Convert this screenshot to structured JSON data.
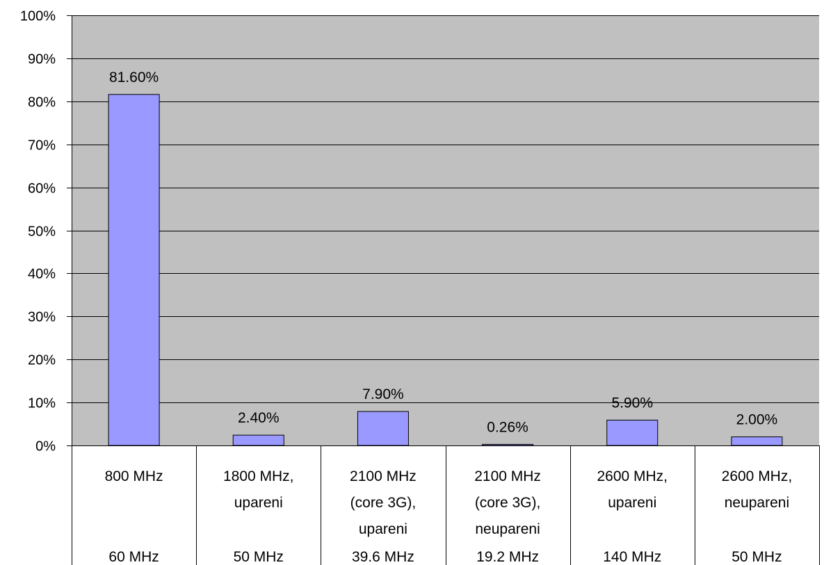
{
  "chart_data": {
    "type": "bar",
    "categories": [
      [
        "800 MHz"
      ],
      [
        "1800 MHz,",
        "upareni"
      ],
      [
        "2100 MHz",
        "(core 3G),",
        "upareni"
      ],
      [
        "2100 MHz",
        "(core 3G),",
        "neupareni"
      ],
      [
        "2600 MHz,",
        "upareni"
      ],
      [
        "2600 MHz,",
        "neupareni"
      ]
    ],
    "bandwidths": [
      "60 MHz",
      "50 MHz",
      "39.6 MHz",
      "19.2 MHz",
      "140 MHz",
      "50 MHz"
    ],
    "values": [
      81.6,
      2.4,
      7.9,
      0.26,
      5.9,
      2.0
    ],
    "data_labels": [
      "81.60%",
      "2.40%",
      "7.90%",
      "0.26%",
      "5.90%",
      "2.00%"
    ],
    "ylim": [
      0,
      100
    ],
    "y_ticks": [
      "0%",
      "10%",
      "20%",
      "30%",
      "40%",
      "50%",
      "60%",
      "70%",
      "80%",
      "90%",
      "100%"
    ],
    "title": "",
    "xlabel": "",
    "ylabel": "",
    "grid": true,
    "legend": "none",
    "colors": {
      "bar": "#9999ff",
      "plot_background": "#c0c0c0",
      "axis": "#000000"
    }
  }
}
